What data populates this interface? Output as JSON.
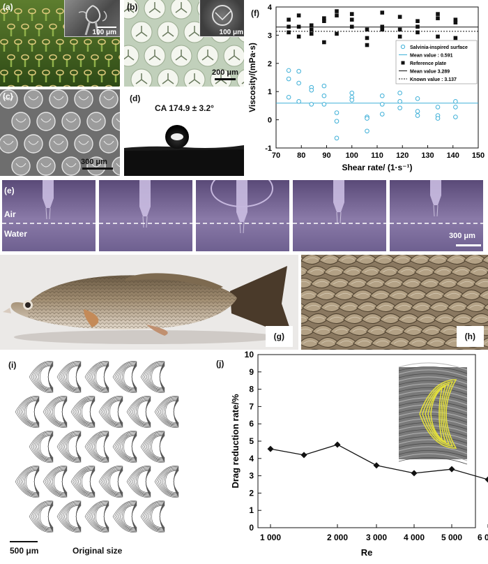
{
  "panels": {
    "a": {
      "label": "(a)",
      "inset_scale": "100 μm"
    },
    "b": {
      "label": "(b)",
      "inset_scale": "100 μm",
      "scale": "200 μm"
    },
    "c": {
      "label": "(c)",
      "scale": "300 μm"
    },
    "d": {
      "label": "(d)",
      "contact_angle": "CA 174.9 ± 3.2°"
    },
    "e": {
      "label": "(e)",
      "air": "Air",
      "water": "Water",
      "scale": "300 μm"
    },
    "g": {
      "label": "(g)"
    },
    "h": {
      "label": "(h)"
    },
    "i": {
      "label": "(i)",
      "scale": "500 μm",
      "caption": "Original size"
    },
    "j": {
      "label": "(j)"
    },
    "f": {
      "label": "(f)"
    }
  },
  "chart_data": [
    {
      "type": "scatter",
      "panel": "f",
      "xlabel": "Shear rate/ (1·s⁻¹)",
      "ylabel": "Viscosity/(mPa·s)",
      "xlim": [
        70,
        150
      ],
      "ylim": [
        -1,
        4
      ],
      "xticks": [
        "70",
        "80",
        "90",
        "100",
        "110",
        "120",
        "130",
        "140",
        "150"
      ],
      "yticks": [
        "-1",
        "0",
        "1",
        "2",
        "3",
        "4"
      ],
      "legend_position": "right",
      "legend": [
        "Salvinia-inspired surface",
        "Mean value : 0.591",
        "Reference plate",
        "Mean value 3.289",
        "Known value : 3.137"
      ],
      "colors": {
        "salvinia": "#3fb0d8",
        "reference": "#111111"
      },
      "series": [
        {
          "name": "Salvinia-inspired surface",
          "points": [
            [
              75,
              1.75
            ],
            [
              75,
              1.45
            ],
            [
              75,
              0.8
            ],
            [
              79,
              1.72
            ],
            [
              79,
              1.3
            ],
            [
              79,
              0.65
            ],
            [
              84,
              1.15
            ],
            [
              84,
              1.05
            ],
            [
              84,
              0.55
            ],
            [
              89,
              1.2
            ],
            [
              89,
              0.85
            ],
            [
              89,
              0.55
            ],
            [
              94,
              0.25
            ],
            [
              94,
              -0.05
            ],
            [
              94,
              -0.65
            ],
            [
              100,
              0.95
            ],
            [
              100,
              0.8
            ],
            [
              100,
              0.7
            ],
            [
              106,
              0.1
            ],
            [
              106,
              0.05
            ],
            [
              106,
              -0.4
            ],
            [
              112,
              0.85
            ],
            [
              112,
              0.55
            ],
            [
              112,
              0.2
            ],
            [
              119,
              0.95
            ],
            [
              119,
              0.65
            ],
            [
              119,
              0.42
            ],
            [
              126,
              0.75
            ],
            [
              126,
              0.3
            ],
            [
              126,
              0.15
            ],
            [
              134,
              0.45
            ],
            [
              134,
              0.15
            ],
            [
              134,
              0.05
            ],
            [
              141,
              0.65
            ],
            [
              141,
              0.45
            ],
            [
              141,
              0.1
            ]
          ]
        },
        {
          "name": "Reference plate",
          "points": [
            [
              75,
              3.55
            ],
            [
              75,
              3.3
            ],
            [
              75,
              3.1
            ],
            [
              79,
              3.7
            ],
            [
              79,
              3.3
            ],
            [
              79,
              2.95
            ],
            [
              84,
              3.35
            ],
            [
              84,
              3.2
            ],
            [
              84,
              3.05
            ],
            [
              89,
              3.6
            ],
            [
              89,
              3.5
            ],
            [
              89,
              2.75
            ],
            [
              94,
              3.85
            ],
            [
              94,
              3.7
            ],
            [
              94,
              3.05
            ],
            [
              100,
              3.75
            ],
            [
              100,
              3.55
            ],
            [
              100,
              3.3
            ],
            [
              106,
              3.2
            ],
            [
              106,
              2.9
            ],
            [
              106,
              2.65
            ],
            [
              112,
              3.8
            ],
            [
              112,
              3.3
            ],
            [
              112,
              3.2
            ],
            [
              119,
              3.65
            ],
            [
              119,
              3.2
            ],
            [
              119,
              2.95
            ],
            [
              126,
              3.5
            ],
            [
              126,
              3.3
            ],
            [
              126,
              3.1
            ],
            [
              134,
              3.75
            ],
            [
              134,
              3.6
            ],
            [
              134,
              2.95
            ],
            [
              141,
              3.55
            ],
            [
              141,
              3.45
            ],
            [
              141,
              2.9
            ]
          ]
        }
      ],
      "lines": [
        {
          "name": "Mean value : 0.591",
          "y": 0.591,
          "style": "solid",
          "color": "#3fb0d8"
        },
        {
          "name": "Mean value 3.289",
          "y": 3.289,
          "style": "solid",
          "color": "#111111"
        },
        {
          "name": "Known value : 3.137",
          "y": 3.137,
          "style": "dotted",
          "color": "#111111"
        }
      ]
    },
    {
      "type": "line",
      "panel": "j",
      "xlabel": "Re",
      "ylabel": "Drag reduction rate/%",
      "categories": [
        "1 000",
        "1 500",
        "2 000",
        "3 000",
        "4 000",
        "5 000",
        "6 000"
      ],
      "x": [
        1000,
        1500,
        2000,
        3000,
        4000,
        5000,
        6000
      ],
      "values": [
        4.55,
        4.2,
        4.8,
        3.6,
        3.15,
        3.38,
        2.78
      ],
      "xticks": [
        "1 000",
        "2 000",
        "3 000",
        "4 000",
        "5 000",
        "6 000"
      ],
      "yticks": [
        "0",
        "1",
        "2",
        "3",
        "4",
        "5",
        "6",
        "7",
        "8",
        "9",
        "10"
      ],
      "ylim": [
        0,
        10
      ],
      "marker": "diamond"
    }
  ]
}
